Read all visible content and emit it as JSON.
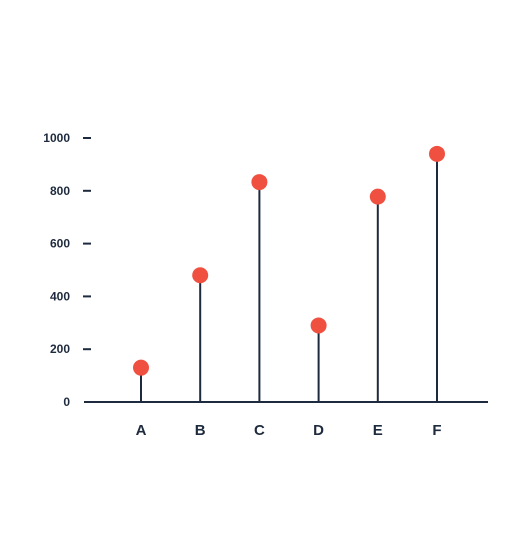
{
  "chart_data": {
    "type": "lollipop",
    "title": "",
    "xlabel": "",
    "ylabel": "",
    "categories": [
      "A",
      "B",
      "C",
      "D",
      "E",
      "F"
    ],
    "values": [
      130,
      480,
      833,
      290,
      778,
      940
    ],
    "ylim": [
      0,
      1000
    ],
    "yticks": [
      0,
      200,
      400,
      600,
      800,
      1000
    ],
    "grid": false,
    "legend": "none"
  },
  "colors": {
    "marker": "#f05040",
    "stem": "#1e2a3d",
    "axis": "#1e2a3d",
    "text": "#1e2a3d"
  }
}
